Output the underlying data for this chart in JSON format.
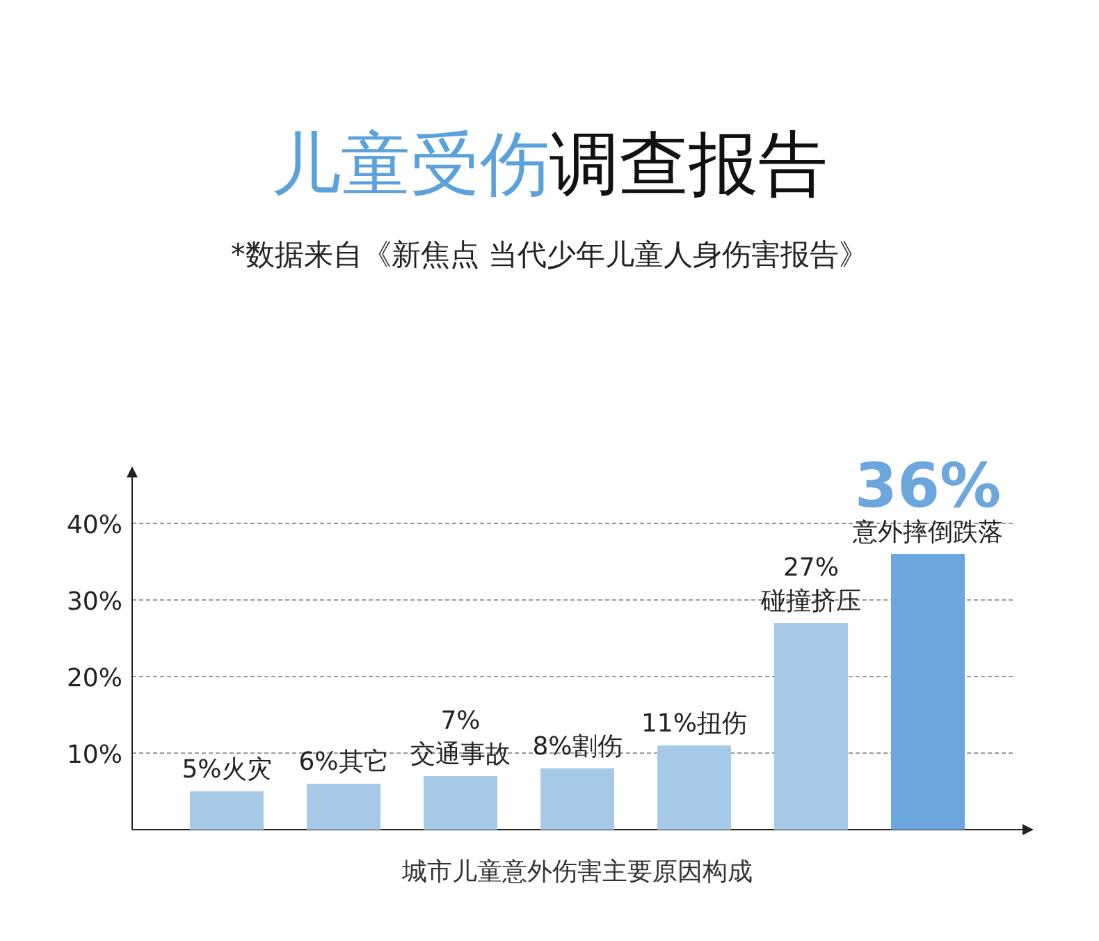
{
  "chart_data": {
    "type": "bar",
    "title": "儿童受伤调查报告",
    "subtitle": "*数据来自《新焦点 当代少年儿童人身伤害报告》",
    "xlabel": "城市儿童意外伤害主要原因构成",
    "categories": [
      "火灾",
      "其它",
      "交通事故",
      "割伤",
      "扭伤",
      "碰撞挤压",
      "意外摔倒跌落"
    ],
    "values": [
      5,
      6,
      7,
      8,
      11,
      27,
      36
    ],
    "value_labels": [
      "5%",
      "6%",
      "7%",
      "8%",
      "11%",
      "27%",
      "36%"
    ],
    "colors": [
      "#a7c9e8",
      "#a7c9e8",
      "#a7c9e8",
      "#a7c9e8",
      "#a7c9e8",
      "#a7c9e8",
      "#6ba6dc"
    ],
    "ylim": [
      0,
      46
    ],
    "yticks": [
      {
        "value": 10,
        "label": "10%"
      },
      {
        "value": 20,
        "label": "20%"
      },
      {
        "value": 30,
        "label": "30%"
      },
      {
        "value": 40,
        "label": "40%"
      }
    ],
    "grid": "y"
  }
}
